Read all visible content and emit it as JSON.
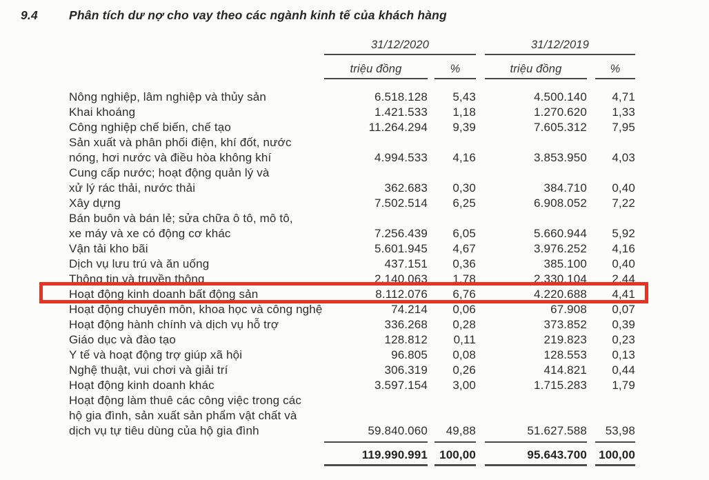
{
  "section": {
    "number": "9.4",
    "title": "Phân tích dư nợ cho vay theo các ngành kinh tế của khách hàng"
  },
  "table": {
    "periods": [
      {
        "label": "31/12/2020",
        "unit": "triệu đồng",
        "percent_symbol": "%"
      },
      {
        "label": "31/12/2019",
        "unit": "triệu đồng",
        "percent_symbol": "%"
      }
    ],
    "rows": [
      {
        "label": [
          "Nông nghiệp, lâm nghiệp và thủy sản"
        ],
        "amount_2020": "6.518.128",
        "percent_2020": "5,43",
        "amount_2019": "4.500.140",
        "percent_2019": "4,71"
      },
      {
        "label": [
          "Khai khoáng"
        ],
        "amount_2020": "1.421.533",
        "percent_2020": "1,18",
        "amount_2019": "1.270.620",
        "percent_2019": "1,33"
      },
      {
        "label": [
          "Công nghiệp chế biến, chế tạo"
        ],
        "amount_2020": "11.264.294",
        "percent_2020": "9,39",
        "amount_2019": "7.605.312",
        "percent_2019": "7,95"
      },
      {
        "label": [
          "Sản xuất và phân phối điện, khí đốt, nước",
          "nóng, hơi nước và điều hòa không khí"
        ],
        "amount_2020": "4.994.533",
        "percent_2020": "4,16",
        "amount_2019": "3.853.950",
        "percent_2019": "4,03"
      },
      {
        "label": [
          "Cung cấp nước; hoạt động quản lý và",
          "xử lý rác thải, nước thải"
        ],
        "amount_2020": "362.683",
        "percent_2020": "0,30",
        "amount_2019": "384.710",
        "percent_2019": "0,40"
      },
      {
        "label": [
          "Xây dựng"
        ],
        "amount_2020": "7.502.514",
        "percent_2020": "6,25",
        "amount_2019": "6.908.052",
        "percent_2019": "7,22"
      },
      {
        "label": [
          "Bán buôn và bán lẻ; sửa chữa ô tô, mô tô,",
          "xe máy và xe có động cơ khác"
        ],
        "amount_2020": "7.256.439",
        "percent_2020": "6,05",
        "amount_2019": "5.660.944",
        "percent_2019": "5,92"
      },
      {
        "label": [
          "Vận tải kho bãi"
        ],
        "amount_2020": "5.601.945",
        "percent_2020": "4,67",
        "amount_2019": "3.976.252",
        "percent_2019": "4,16"
      },
      {
        "label": [
          "Dịch vụ lưu trú và ăn uống"
        ],
        "amount_2020": "437.151",
        "percent_2020": "0,36",
        "amount_2019": "385.100",
        "percent_2019": "0,40"
      },
      {
        "label": [
          "Thông tin và truyền thông"
        ],
        "amount_2020": "2.140.063",
        "percent_2020": "1,78",
        "amount_2019": "2.330.104",
        "percent_2019": "2,44"
      },
      {
        "label": [
          "Hoạt động kinh doanh bất động sản"
        ],
        "amount_2020": "8.112.076",
        "percent_2020": "6,76",
        "amount_2019": "4.220.688",
        "percent_2019": "4,41",
        "highlighted": true
      },
      {
        "label": [
          "Hoạt động chuyên môn, khoa học và công nghệ"
        ],
        "amount_2020": "74.214",
        "percent_2020": "0,06",
        "amount_2019": "67.908",
        "percent_2019": "0,07"
      },
      {
        "label": [
          "Hoạt động hành chính và dịch vụ hỗ trợ"
        ],
        "amount_2020": "336.268",
        "percent_2020": "0,28",
        "amount_2019": "373.852",
        "percent_2019": "0,39"
      },
      {
        "label": [
          "Giáo dục và đào tạo"
        ],
        "amount_2020": "128.812",
        "percent_2020": "0,11",
        "amount_2019": "219.823",
        "percent_2019": "0,23"
      },
      {
        "label": [
          "Y tế và hoạt động trợ giúp xã hội"
        ],
        "amount_2020": "96.805",
        "percent_2020": "0,08",
        "amount_2019": "128.553",
        "percent_2019": "0,13"
      },
      {
        "label": [
          "Nghệ thuật, vui chơi và giải trí"
        ],
        "amount_2020": "306.319",
        "percent_2020": "0,26",
        "amount_2019": "414.821",
        "percent_2019": "0,44"
      },
      {
        "label": [
          "Hoạt động kinh doanh khác"
        ],
        "amount_2020": "3.597.154",
        "percent_2020": "3,00",
        "amount_2019": "1.715.283",
        "percent_2019": "1,79"
      },
      {
        "label": [
          "Hoạt động làm thuê các công việc trong các",
          "hộ gia đình, sản xuất sản phẩm vật chất và",
          "dịch vụ tự tiêu dùng của hộ gia đình"
        ],
        "amount_2020": "59.840.060",
        "percent_2020": "49,88",
        "amount_2019": "51.627.588",
        "percent_2019": "53,98",
        "total_separator": true
      }
    ],
    "total": {
      "amount_2020": "119.990.991",
      "percent_2020": "100,00",
      "amount_2019": "95.643.700",
      "percent_2019": "100,00"
    }
  },
  "annotation": {
    "type": "red-box",
    "color": "#e63322",
    "highlighted_row": "Hoạt động kinh doanh bất động sản"
  }
}
